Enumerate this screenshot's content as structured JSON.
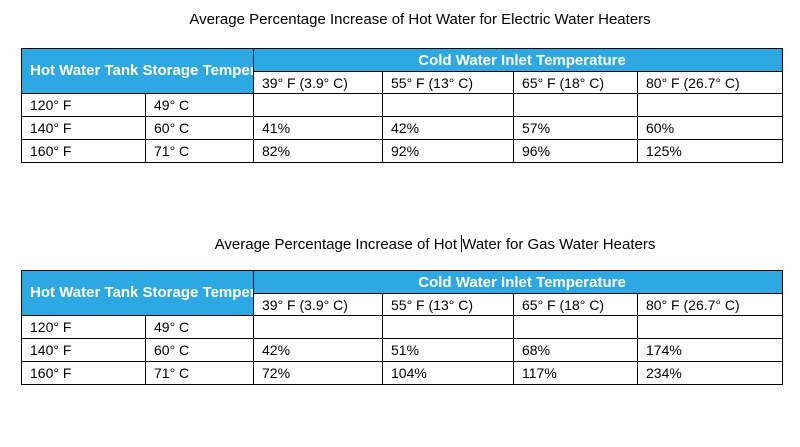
{
  "tables": [
    {
      "title_part1": "Average Percentage Increase of Hot Water for Electric Water Heaters",
      "title_part2": "",
      "tank_header": "Hot Water Tank Storage Temperature",
      "inlet_header": "Cold Water Inlet Temperature",
      "inlet_columns": [
        "39° F (3.9° C)",
        "55° F (13° C)",
        "65° F (18° C)",
        "80° F (26.7° C)"
      ],
      "rows": [
        {
          "f": "120° F",
          "c": "49° C",
          "values": [
            "",
            "",
            "",
            ""
          ]
        },
        {
          "f": "140° F",
          "c": "60° C",
          "values": [
            "41%",
            "42%",
            "57%",
            "60%"
          ]
        },
        {
          "f": "160° F",
          "c": "71° C",
          "values": [
            "82%",
            "92%",
            "96%",
            "125%"
          ]
        }
      ]
    },
    {
      "title_part1": "Average Percentage Increase of Hot ",
      "title_part2": "Water for Gas Water Heaters",
      "tank_header": "Hot Water Tank Storage Temperature",
      "inlet_header": "Cold Water Inlet Temperature",
      "inlet_columns": [
        "39° F (3.9° C)",
        "55° F (13° C)",
        "65° F (18° C)",
        "80° F (26.7° C)"
      ],
      "rows": [
        {
          "f": "120° F",
          "c": "49° C",
          "values": [
            "",
            "",
            "",
            ""
          ]
        },
        {
          "f": "140° F",
          "c": "60° C",
          "values": [
            "42%",
            "51%",
            "68%",
            "174%"
          ]
        },
        {
          "f": "160° F",
          "c": "71° C",
          "values": [
            "72%",
            "104%",
            "117%",
            "234%"
          ]
        }
      ]
    }
  ]
}
